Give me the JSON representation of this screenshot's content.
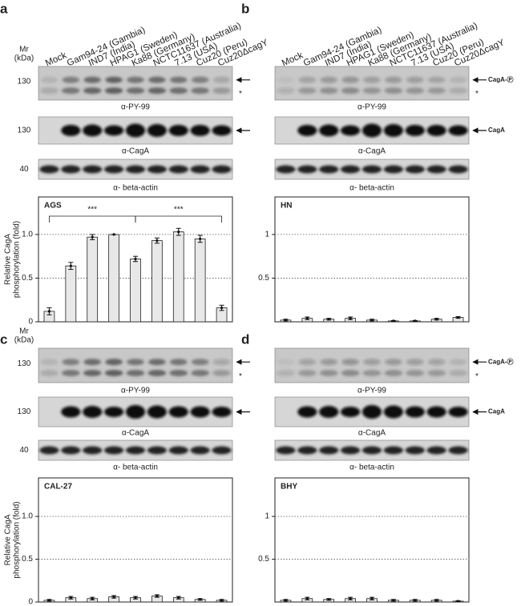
{
  "lanes": [
    "Mock",
    "Gam94-24 (Gambia)",
    "IND7 (India)",
    "HPAG1 (Sweden)",
    "Ka88 (Germany)",
    "NCTC11637 (Australia)",
    "7.13 (USA)",
    "Cuz20 (Peru)",
    "Cuz20ΔcagY"
  ],
  "mr_header": [
    "Mr",
    "(kDa)"
  ],
  "panels": [
    {
      "letter": "a",
      "blots": [
        {
          "mr": "130",
          "antibody": "α-PY-99",
          "asterisk": "*"
        },
        {
          "mr": "130",
          "antibody": "α-CagA"
        },
        {
          "mr": "40",
          "antibody": "α- beta-actin"
        }
      ]
    },
    {
      "letter": "b",
      "blots": [
        {
          "antibody": "α-PY-99",
          "marker": "CagA-Ⓟ",
          "asterisk": "*"
        },
        {
          "antibody": "α-CagA",
          "marker": "CagA"
        },
        {
          "antibody": "α- beta-actin"
        }
      ]
    },
    {
      "letter": "c",
      "blots": [
        {
          "mr": "130",
          "antibody": "α-PY-99",
          "asterisk": "*"
        },
        {
          "mr": "130",
          "antibody": "α-CagA"
        },
        {
          "mr": "40",
          "antibody": "α- beta-actin"
        }
      ]
    },
    {
      "letter": "d",
      "blots": [
        {
          "antibody": "α-PY-99",
          "marker": "CagA-Ⓟ",
          "asterisk": "*"
        },
        {
          "antibody": "α-CagA",
          "marker": "CagA"
        },
        {
          "antibody": "α- beta-actin"
        }
      ]
    }
  ],
  "chart_data": [
    {
      "type": "bar",
      "title": "AGS",
      "y_label": [
        "Relative CagA",
        "phosphorylation (fold)"
      ],
      "color": "#e8e8e8",
      "values": [
        0.12,
        0.64,
        0.97,
        1.0,
        0.72,
        0.93,
        1.03,
        0.95,
        0.16
      ],
      "errors": [
        0.04,
        0.04,
        0.03,
        0.0,
        0.03,
        0.03,
        0.04,
        0.04,
        0.03
      ],
      "annotations": [
        "***",
        "***"
      ],
      "ylim": [
        0,
        1.43
      ],
      "yticks": [
        0,
        0.5,
        {
          "value": 1,
          "label": "1.0"
        }
      ],
      "grid": true
    },
    {
      "type": "bar",
      "title": "HN",
      "color": "#e8e8e8",
      "values": [
        0.02,
        0.04,
        0.03,
        0.04,
        0.02,
        0.01,
        0.01,
        0.03,
        0.05
      ],
      "errors": [
        0.01,
        0.015,
        0.01,
        0.015,
        0.01,
        0.005,
        0.005,
        0.01,
        0.01
      ],
      "ylim": [
        0,
        1.43
      ],
      "yticks": [
        0.5,
        1
      ],
      "grid": true
    },
    {
      "type": "bar",
      "title": "CAL-27",
      "y_label": [
        "Relative CagA",
        "phosphorylation (fold)"
      ],
      "color": "#e8e8e8",
      "values": [
        0.02,
        0.05,
        0.04,
        0.06,
        0.05,
        0.07,
        0.05,
        0.03,
        0.02
      ],
      "errors": [
        0.01,
        0.015,
        0.015,
        0.015,
        0.015,
        0.015,
        0.015,
        0.01,
        0.01
      ],
      "ylim": [
        0,
        1.45
      ],
      "yticks": [
        0,
        0.5,
        {
          "value": 1,
          "label": "1.0"
        }
      ],
      "grid": true
    },
    {
      "type": "bar",
      "title": "BHY",
      "color": "#e8e8e8",
      "values": [
        0.02,
        0.04,
        0.03,
        0.04,
        0.04,
        0.02,
        0.02,
        0.02,
        0.01
      ],
      "errors": [
        0.01,
        0.015,
        0.01,
        0.015,
        0.015,
        0.01,
        0.01,
        0.01,
        0.005
      ],
      "ylim": [
        0,
        1.45
      ],
      "yticks": [
        0.5,
        1
      ],
      "grid": true
    }
  ]
}
